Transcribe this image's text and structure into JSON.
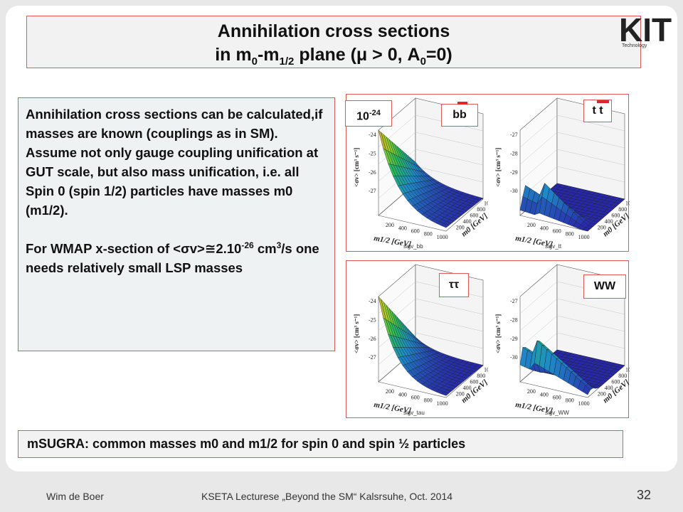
{
  "title": {
    "line1": "Annihilation cross sections",
    "line2_prefix": "in m",
    "sub0": "0",
    "line2_dash": "-m",
    "sub_half": "1/2",
    "line2_mid": " plane (μ > 0, A",
    "sub_a": "0",
    "line2_end": "=0)"
  },
  "logo": {
    "letters": "KIT",
    "caption": "Technology"
  },
  "text": {
    "p1": "Annihilation cross sections can be calculated,if masses are known (couplings as in SM).",
    "p2": "Assume not only gauge coupling unification at GUT scale, but also mass unification, i.e. all Spin 0 (spin 1/2) particles have masses m0 (m1/2).",
    "p3_a": "For WMAP x-section of <σv>≅2.10",
    "p3_exp": "-26",
    "p3_b": " cm",
    "p3_exp2": "3",
    "p3_c": "/s one needs relatively small LSP masses"
  },
  "plots": {
    "scale_base": "10",
    "scale_exp": "-24",
    "bb": {
      "tag": "bb",
      "stat": "sigv_bb",
      "zticks": [
        "-24",
        "-25",
        "-26",
        "-27"
      ]
    },
    "tt": {
      "tag": "t t",
      "stat": "sigv_tt",
      "zticks": [
        "-27",
        "-28",
        "-29",
        "-30"
      ]
    },
    "tau": {
      "tag": "ττ",
      "stat": "sigv_tau",
      "zticks": [
        "-24",
        "-25",
        "-26",
        "-27"
      ]
    },
    "ww": {
      "tag": "WW",
      "stat": "sigv_WW",
      "zticks": [
        "-27",
        "-28",
        "-29",
        "-30"
      ]
    },
    "zlabel": "<σv> [cm³ s⁻¹]",
    "xlabel": "m1/2 [GeV]",
    "ylabel": "m0 [GeV]",
    "xticks": [
      "200",
      "400",
      "600",
      "800",
      "1000"
    ],
    "yticks": [
      "200",
      "400",
      "600",
      "800",
      "1000"
    ]
  },
  "bottom": "mSUGRA: common masses m0 and m1/2 for spin 0 and spin ½ particles",
  "footer": {
    "author": "Wim de Boer",
    "event": "KSETA Lecturese „Beyond the SM“ Kalsrsuhe, Oct. 2014",
    "page": "32"
  }
}
